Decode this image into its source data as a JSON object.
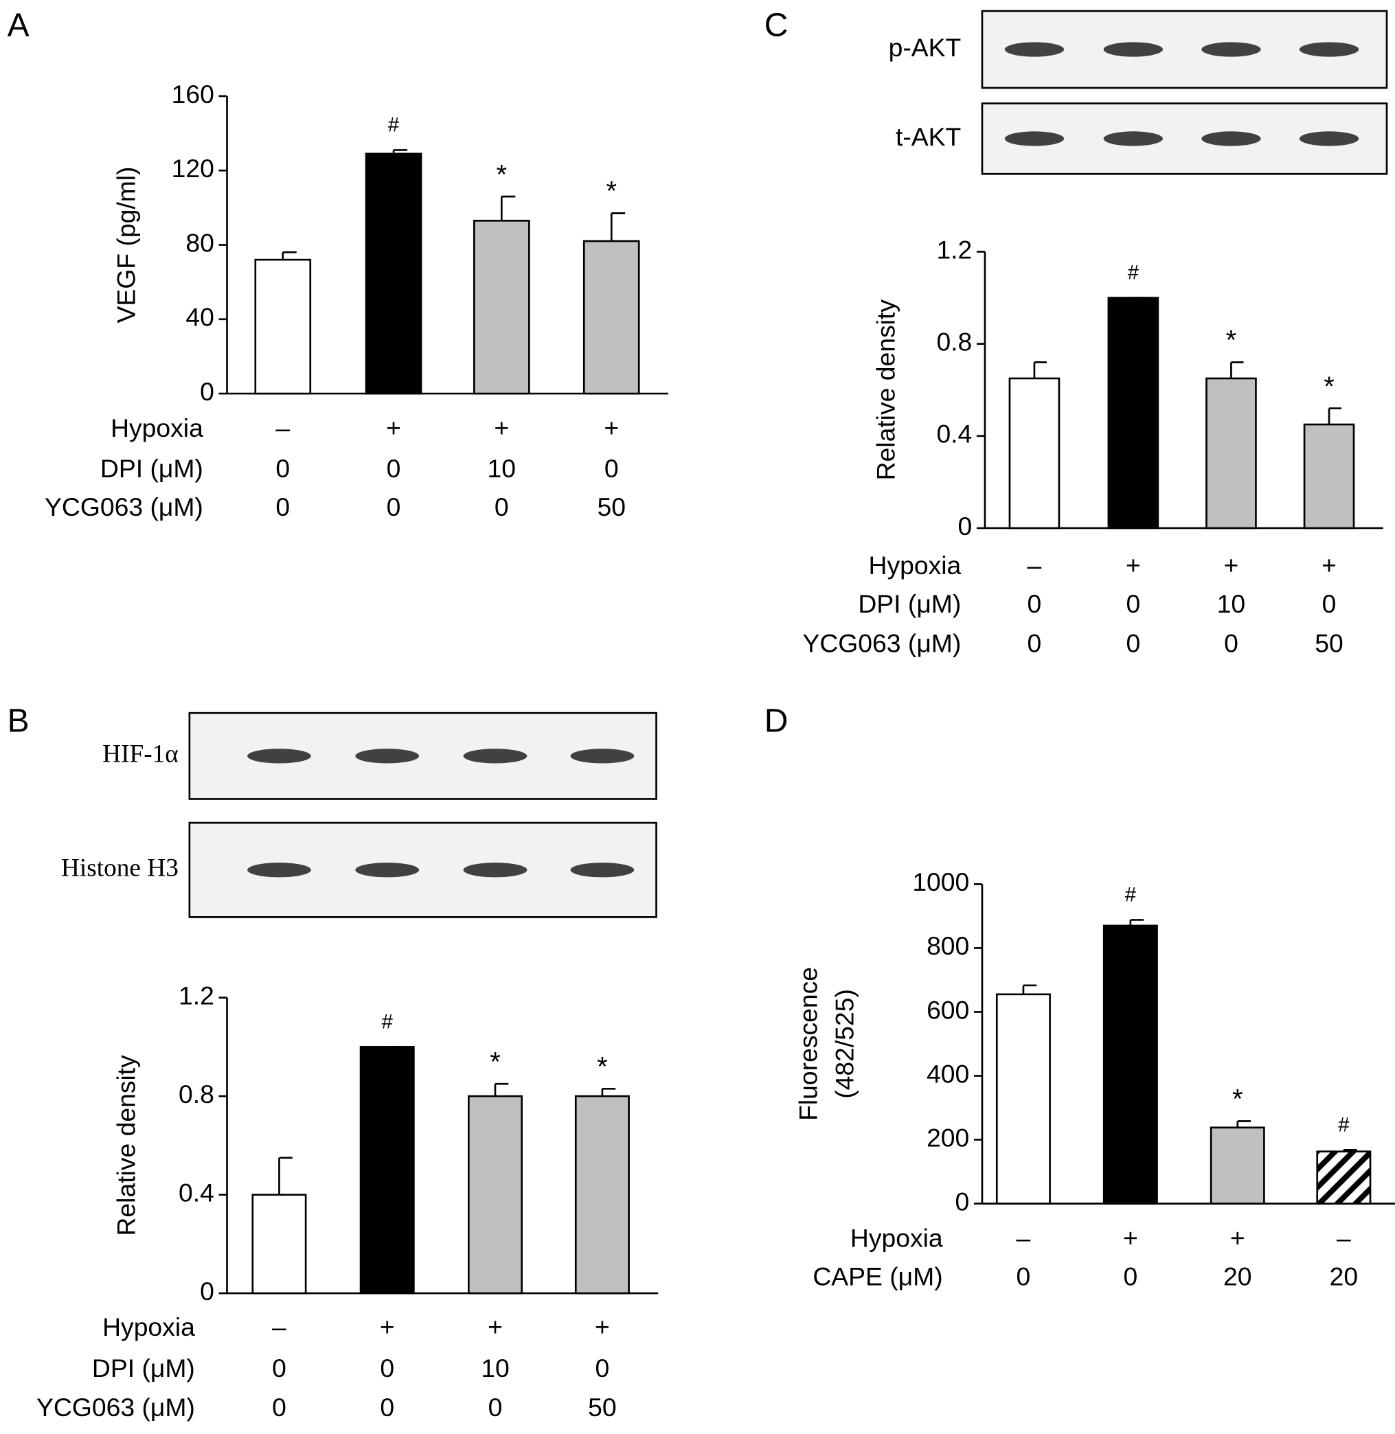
{
  "chart_data": [
    {
      "type": "bar",
      "panel": "A",
      "ylabel": "VEGF (pg/ml)",
      "ylim": [
        0,
        160
      ],
      "yticks": [
        0,
        40,
        80,
        120,
        160
      ],
      "values": [
        72,
        129,
        93,
        82
      ],
      "errors": [
        4,
        2,
        13,
        15
      ],
      "annotations": [
        null,
        "#",
        "*",
        "*"
      ],
      "colors": [
        "#ffffff",
        "#000000",
        "#c0c0c0",
        "#c0c0c0"
      ],
      "hatched": [
        false,
        false,
        false,
        false
      ],
      "conditions": [
        {
          "label": "Hypoxia",
          "values": [
            "–",
            "+",
            "+",
            "+"
          ]
        },
        {
          "label": "DPI (μM)",
          "values": [
            "0",
            "0",
            "10",
            "0"
          ]
        },
        {
          "label": "YCG063 (μM)",
          "values": [
            "0",
            "0",
            "0",
            "50"
          ]
        }
      ],
      "blots": []
    },
    {
      "type": "bar",
      "panel": "B",
      "ylabel": "Relative density",
      "ylim": [
        0,
        1.2
      ],
      "yticks": [
        0,
        0.4,
        0.8,
        1.2
      ],
      "values": [
        0.4,
        1.0,
        0.8,
        0.8
      ],
      "errors": [
        0.15,
        0,
        0.05,
        0.03
      ],
      "annotations": [
        null,
        "#",
        "*",
        "*"
      ],
      "colors": [
        "#ffffff",
        "#000000",
        "#c0c0c0",
        "#c0c0c0"
      ],
      "hatched": [
        false,
        false,
        false,
        false
      ],
      "conditions": [
        {
          "label": "Hypoxia",
          "values": [
            "–",
            "+",
            "+",
            "+"
          ]
        },
        {
          "label": "DPI (μM)",
          "values": [
            "0",
            "0",
            "10",
            "0"
          ]
        },
        {
          "label": "YCG063 (μM)",
          "values": [
            "0",
            "0",
            "0",
            "50"
          ]
        }
      ],
      "blots": [
        "HIF-1α",
        "Histone H3"
      ]
    },
    {
      "type": "bar",
      "panel": "C",
      "ylabel": "Relative density",
      "ylim": [
        0,
        1.2
      ],
      "yticks": [
        0,
        0.4,
        0.8,
        1.2
      ],
      "values": [
        0.65,
        1.0,
        0.65,
        0.45
      ],
      "errors": [
        0.07,
        0,
        0.07,
        0.07
      ],
      "annotations": [
        null,
        "#",
        "*",
        "*"
      ],
      "colors": [
        "#ffffff",
        "#000000",
        "#c0c0c0",
        "#c0c0c0"
      ],
      "hatched": [
        false,
        false,
        false,
        false
      ],
      "conditions": [
        {
          "label": "Hypoxia",
          "values": [
            "–",
            "+",
            "+",
            "+"
          ]
        },
        {
          "label": "DPI (μM)",
          "values": [
            "0",
            "0",
            "10",
            "0"
          ]
        },
        {
          "label": "YCG063 (μM)",
          "values": [
            "0",
            "0",
            "0",
            "50"
          ]
        }
      ],
      "blots": [
        "p-AKT",
        "t-AKT"
      ]
    },
    {
      "type": "bar",
      "panel": "D",
      "ylabel": [
        "Fluorescence",
        "(482/525)"
      ],
      "ylim": [
        0,
        1000
      ],
      "yticks": [
        0,
        200,
        400,
        600,
        800,
        1000
      ],
      "values": [
        655,
        870,
        238,
        163
      ],
      "errors": [
        28,
        18,
        20,
        5
      ],
      "annotations": [
        null,
        "#",
        "*",
        "#"
      ],
      "colors": [
        "#ffffff",
        "#000000",
        "#c0c0c0",
        "#ffffff"
      ],
      "hatched": [
        false,
        false,
        false,
        true
      ],
      "conditions": [
        {
          "label": "Hypoxia",
          "values": [
            "–",
            "+",
            "+",
            "–"
          ]
        },
        {
          "label": "CAPE (μM)",
          "values": [
            "0",
            "0",
            "20",
            "20"
          ]
        }
      ],
      "blots": []
    }
  ]
}
